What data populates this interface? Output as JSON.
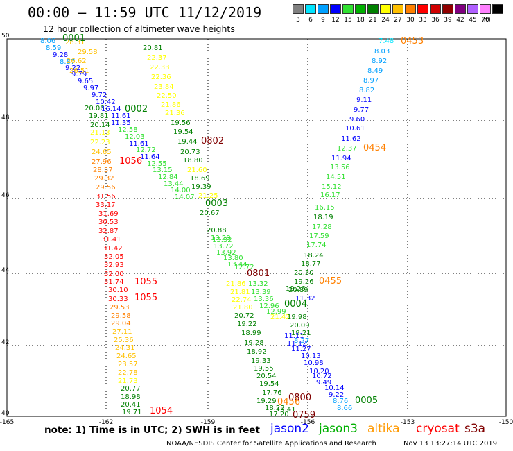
{
  "header": {
    "title": "00:00 – 11:59 UTC 11/12/2019",
    "subtitle": "12 hour collection of altimeter wave heights"
  },
  "legend": {
    "unit_label": "(ft)",
    "bins": [
      {
        "label": "3",
        "color": "#808080"
      },
      {
        "label": "6",
        "color": "#00e5ff"
      },
      {
        "label": "9",
        "color": "#00a0ff"
      },
      {
        "label": "12",
        "color": "#0000ff"
      },
      {
        "label": "15",
        "color": "#30e030"
      },
      {
        "label": "18",
        "color": "#00b000"
      },
      {
        "label": "21",
        "color": "#008000"
      },
      {
        "label": "24",
        "color": "#ffff00"
      },
      {
        "label": "27",
        "color": "#ffc000"
      },
      {
        "label": "30",
        "color": "#ff8000"
      },
      {
        "label": "33",
        "color": "#ff0000"
      },
      {
        "label": "36",
        "color": "#d00000"
      },
      {
        "label": "39",
        "color": "#900000"
      },
      {
        "label": "42",
        "color": "#800080"
      },
      {
        "label": "45",
        "color": "#b060ff"
      },
      {
        "label": "70",
        "color": "#ff80ff"
      },
      {
        "label": "",
        "color": "#000000"
      }
    ]
  },
  "map": {
    "lat_labels": [
      "50",
      "48",
      "46",
      "44",
      "42",
      "40"
    ],
    "lon_labels": [
      "-165",
      "-162",
      "-159",
      "-156",
      "-153",
      "-150"
    ],
    "pass_times": [
      {
        "text": "0001",
        "color": "#008000"
      },
      {
        "text": "0002",
        "color": "#008000"
      },
      {
        "text": "0802",
        "color": "#800000"
      },
      {
        "text": "1056",
        "color": "#ff0000"
      },
      {
        "text": "0003",
        "color": "#008000"
      },
      {
        "text": "0801",
        "color": "#800000"
      },
      {
        "text": "1055",
        "color": "#ff0000"
      },
      {
        "text": "1055",
        "color": "#ff0000"
      },
      {
        "text": "0004",
        "color": "#008000"
      },
      {
        "text": "0453",
        "color": "#ff8000"
      },
      {
        "text": "0454",
        "color": "#ff8000"
      },
      {
        "text": "0455",
        "color": "#ff8000"
      },
      {
        "text": "0456",
        "color": "#ff8000"
      },
      {
        "text": "0800",
        "color": "#800000"
      },
      {
        "text": "0005",
        "color": "#008000"
      },
      {
        "text": "0759",
        "color": "#800000"
      },
      {
        "text": "1054",
        "color": "#ff0000"
      }
    ],
    "observations": [
      {
        "v": "8.06",
        "c": "#00a0ff"
      },
      {
        "v": "8.59",
        "c": "#00a0ff"
      },
      {
        "v": "9.28",
        "c": "#0000ff"
      },
      {
        "v": "8.87",
        "c": "#00a0ff"
      },
      {
        "v": "9.22",
        "c": "#0000ff"
      },
      {
        "v": "9.79",
        "c": "#0000ff"
      },
      {
        "v": "9.65",
        "c": "#0000ff"
      },
      {
        "v": "9.97",
        "c": "#0000ff"
      },
      {
        "v": "9.72",
        "c": "#0000ff"
      },
      {
        "v": "10.42",
        "c": "#0000ff"
      },
      {
        "v": "20.06",
        "c": "#008000"
      },
      {
        "v": "16.14",
        "c": "#0000ff"
      },
      {
        "v": "19.81",
        "c": "#008000"
      },
      {
        "v": "11.61",
        "c": "#0000ff"
      },
      {
        "v": "11.35",
        "c": "#0000ff"
      },
      {
        "v": "20.14",
        "c": "#008000"
      },
      {
        "v": "12.58",
        "c": "#30e030"
      },
      {
        "v": "12.03",
        "c": "#30e030"
      },
      {
        "v": "11.61",
        "c": "#0000ff"
      },
      {
        "v": "12.72",
        "c": "#30e030"
      },
      {
        "v": "11.64",
        "c": "#0000ff"
      },
      {
        "v": "12.55",
        "c": "#30e030"
      },
      {
        "v": "13.15",
        "c": "#30e030"
      },
      {
        "v": "12.84",
        "c": "#30e030"
      },
      {
        "v": "13.44",
        "c": "#30e030"
      },
      {
        "v": "14.00",
        "c": "#30e030"
      },
      {
        "v": "14.07",
        "c": "#30e030"
      },
      {
        "v": "28.31",
        "c": "#ffc000"
      },
      {
        "v": "29.58",
        "c": "#ffc000"
      },
      {
        "v": "26.62",
        "c": "#ffc000"
      },
      {
        "v": "26.51",
        "c": "#ffc000"
      },
      {
        "v": "21.13",
        "c": "#ffff00"
      },
      {
        "v": "22.23",
        "c": "#ffff00"
      },
      {
        "v": "24.65",
        "c": "#ffc000"
      },
      {
        "v": "27.96",
        "c": "#ff8000"
      },
      {
        "v": "28.57",
        "c": "#ff8000"
      },
      {
        "v": "29.32",
        "c": "#ff8000"
      },
      {
        "v": "29.56",
        "c": "#ff8000"
      },
      {
        "v": "31.56",
        "c": "#ff0000"
      },
      {
        "v": "33.17",
        "c": "#ff0000"
      },
      {
        "v": "31.69",
        "c": "#ff0000"
      },
      {
        "v": "30.53",
        "c": "#ff0000"
      },
      {
        "v": "32.87",
        "c": "#ff0000"
      },
      {
        "v": "31.41",
        "c": "#ff0000"
      },
      {
        "v": "31.42",
        "c": "#ff0000"
      },
      {
        "v": "32.05",
        "c": "#ff0000"
      },
      {
        "v": "32.93",
        "c": "#ff0000"
      },
      {
        "v": "32.00",
        "c": "#ff0000"
      },
      {
        "v": "31.74",
        "c": "#ff0000"
      },
      {
        "v": "30.10",
        "c": "#ff0000"
      },
      {
        "v": "30.33",
        "c": "#ff0000"
      },
      {
        "v": "29.53",
        "c": "#ff8000"
      },
      {
        "v": "29.58",
        "c": "#ff8000"
      },
      {
        "v": "29.04",
        "c": "#ff8000"
      },
      {
        "v": "27.11",
        "c": "#ffc000"
      },
      {
        "v": "25.36",
        "c": "#ffc000"
      },
      {
        "v": "24.31",
        "c": "#ffc000"
      },
      {
        "v": "24.65",
        "c": "#ffc000"
      },
      {
        "v": "23.57",
        "c": "#ffc000"
      },
      {
        "v": "22.78",
        "c": "#ffc000"
      },
      {
        "v": "21.73",
        "c": "#ffff00"
      },
      {
        "v": "20.77",
        "c": "#008000"
      },
      {
        "v": "18.98",
        "c": "#008000"
      },
      {
        "v": "20.41",
        "c": "#008000"
      },
      {
        "v": "19.71",
        "c": "#008000"
      },
      {
        "v": "20.81",
        "c": "#008000"
      },
      {
        "v": "22.37",
        "c": "#ffff00"
      },
      {
        "v": "22.33",
        "c": "#ffff00"
      },
      {
        "v": "22.36",
        "c": "#ffff00"
      },
      {
        "v": "23.84",
        "c": "#ffff00"
      },
      {
        "v": "22.50",
        "c": "#ffff00"
      },
      {
        "v": "21.86",
        "c": "#ffff00"
      },
      {
        "v": "21.36",
        "c": "#ffff00"
      },
      {
        "v": "19.56",
        "c": "#008000"
      },
      {
        "v": "19.54",
        "c": "#008000"
      },
      {
        "v": "19.44",
        "c": "#008000"
      },
      {
        "v": "20.73",
        "c": "#008000"
      },
      {
        "v": "18.80",
        "c": "#008000"
      },
      {
        "v": "21.60",
        "c": "#ffff00"
      },
      {
        "v": "18.69",
        "c": "#008000"
      },
      {
        "v": "19.39",
        "c": "#008000"
      },
      {
        "v": "21.25",
        "c": "#ffff00"
      },
      {
        "v": "20.67",
        "c": "#008000"
      },
      {
        "v": "20.88",
        "c": "#008000"
      },
      {
        "v": "13.28",
        "c": "#30e030"
      },
      {
        "v": "13.32",
        "c": "#30e030"
      },
      {
        "v": "13.72",
        "c": "#30e030"
      },
      {
        "v": "13.92",
        "c": "#30e030"
      },
      {
        "v": "13.80",
        "c": "#30e030"
      },
      {
        "v": "13.44",
        "c": "#30e030"
      },
      {
        "v": "12.72",
        "c": "#30e030"
      },
      {
        "v": "13.32",
        "c": "#30e030"
      },
      {
        "v": "13.39",
        "c": "#30e030"
      },
      {
        "v": "13.36",
        "c": "#30e030"
      },
      {
        "v": "12.96",
        "c": "#30e030"
      },
      {
        "v": "12.99",
        "c": "#30e030"
      },
      {
        "v": "21.42",
        "c": "#ffff00"
      },
      {
        "v": "21.86",
        "c": "#ffff00"
      },
      {
        "v": "21.81",
        "c": "#ffff00"
      },
      {
        "v": "22.74",
        "c": "#ffff00"
      },
      {
        "v": "21.80",
        "c": "#ffff00"
      },
      {
        "v": "20.72",
        "c": "#008000"
      },
      {
        "v": "19.22",
        "c": "#008000"
      },
      {
        "v": "18.99",
        "c": "#008000"
      },
      {
        "v": "19.28",
        "c": "#008000"
      },
      {
        "v": "18.92",
        "c": "#008000"
      },
      {
        "v": "19.33",
        "c": "#008000"
      },
      {
        "v": "19.55",
        "c": "#008000"
      },
      {
        "v": "20.54",
        "c": "#008000"
      },
      {
        "v": "19.54",
        "c": "#008000"
      },
      {
        "v": "17.76",
        "c": "#008000"
      },
      {
        "v": "19.29",
        "c": "#008000"
      },
      {
        "v": "18.22",
        "c": "#008000"
      },
      {
        "v": "17.20",
        "c": "#008000"
      },
      {
        "v": "19.41",
        "c": "#008000"
      },
      {
        "v": "19.26",
        "c": "#008000"
      },
      {
        "v": "19.98",
        "c": "#008000"
      },
      {
        "v": "20.09",
        "c": "#008000"
      },
      {
        "v": "19.21",
        "c": "#008000"
      },
      {
        "v": "8.27",
        "c": "#00a0ff"
      },
      {
        "v": "7.48",
        "c": "#00e5ff"
      },
      {
        "v": "8.03",
        "c": "#00a0ff"
      },
      {
        "v": "8.92",
        "c": "#00a0ff"
      },
      {
        "v": "8.49",
        "c": "#00a0ff"
      },
      {
        "v": "8.97",
        "c": "#00a0ff"
      },
      {
        "v": "8.82",
        "c": "#00a0ff"
      },
      {
        "v": "9.11",
        "c": "#0000ff"
      },
      {
        "v": "9.77",
        "c": "#0000ff"
      },
      {
        "v": "9.60",
        "c": "#0000ff"
      },
      {
        "v": "10.61",
        "c": "#0000ff"
      },
      {
        "v": "11.62",
        "c": "#0000ff"
      },
      {
        "v": "12.37",
        "c": "#30e030"
      },
      {
        "v": "11.94",
        "c": "#0000ff"
      },
      {
        "v": "13.56",
        "c": "#30e030"
      },
      {
        "v": "14.51",
        "c": "#30e030"
      },
      {
        "v": "15.12",
        "c": "#30e030"
      },
      {
        "v": "16.17",
        "c": "#30e030"
      },
      {
        "v": "16.15",
        "c": "#30e030"
      },
      {
        "v": "18.19",
        "c": "#008000"
      },
      {
        "v": "17.28",
        "c": "#30e030"
      },
      {
        "v": "17.59",
        "c": "#30e030"
      },
      {
        "v": "17.74",
        "c": "#30e030"
      },
      {
        "v": "18.24",
        "c": "#008000"
      },
      {
        "v": "18.77",
        "c": "#008000"
      },
      {
        "v": "20.30",
        "c": "#008000"
      },
      {
        "v": "19.26",
        "c": "#008000"
      },
      {
        "v": "20.89",
        "c": "#008000"
      },
      {
        "v": "11.32",
        "c": "#0000ff"
      },
      {
        "v": "11.11",
        "c": "#0000ff"
      },
      {
        "v": "11.12",
        "c": "#0000ff"
      },
      {
        "v": "11.27",
        "c": "#0000ff"
      },
      {
        "v": "10.13",
        "c": "#0000ff"
      },
      {
        "v": "10.98",
        "c": "#0000ff"
      },
      {
        "v": "10.20",
        "c": "#0000ff"
      },
      {
        "v": "10.72",
        "c": "#0000ff"
      },
      {
        "v": "9.49",
        "c": "#0000ff"
      },
      {
        "v": "10.14",
        "c": "#0000ff"
      },
      {
        "v": "9.22",
        "c": "#0000ff"
      },
      {
        "v": "8.76",
        "c": "#00a0ff"
      },
      {
        "v": "8.66",
        "c": "#00a0ff"
      }
    ]
  },
  "footer": {
    "note": "note:  1) Time is in UTC;  2) SWH is in feet",
    "satellites": [
      {
        "name": "jason2",
        "color": "#0000ff"
      },
      {
        "name": "jason3",
        "color": "#00b000"
      },
      {
        "name": "altika",
        "color": "#ff9900"
      },
      {
        "name": "cryosat",
        "color": "#ff0000"
      },
      {
        "name": "s3a",
        "color": "#800000"
      }
    ],
    "credit": "NOAA/NESDIS Center for Satellite Applications and Research",
    "timestamp": "Nov 13 13:27:14 UTC 2019"
  }
}
